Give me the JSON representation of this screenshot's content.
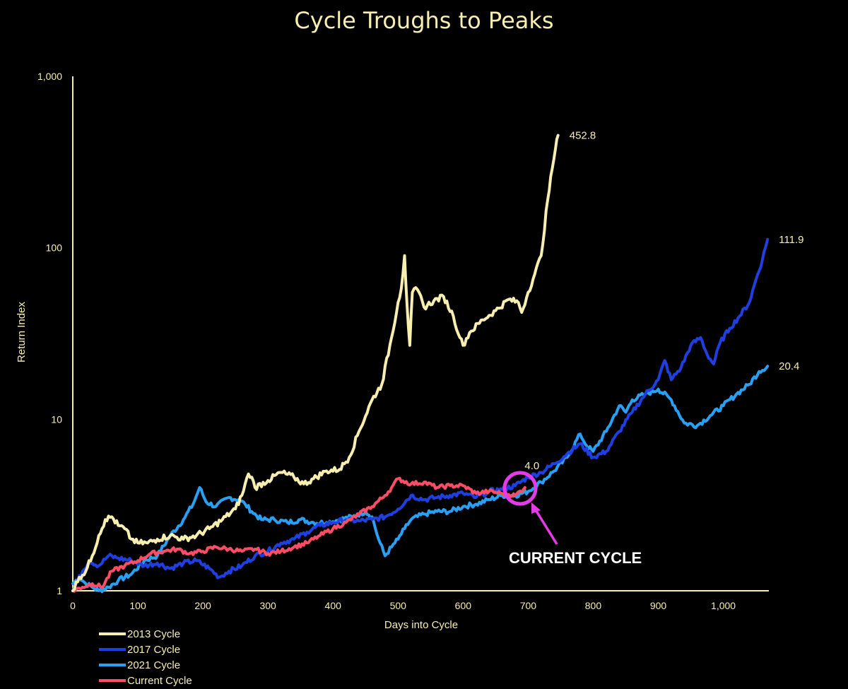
{
  "chart_data": {
    "type": "line",
    "title": "Cycle Troughs to Peaks",
    "xlabel": "Days into Cycle",
    "ylabel": "Return Index",
    "xlim": [
      0,
      1070
    ],
    "ylim": [
      1,
      1000
    ],
    "yscale": "log",
    "xticks": [
      0,
      100,
      200,
      300,
      400,
      500,
      600,
      700,
      800,
      900,
      1000
    ],
    "xtick_labels": [
      "0",
      "100",
      "200",
      "300",
      "400",
      "500",
      "600",
      "700",
      "800",
      "900",
      "1,000"
    ],
    "yticks": [
      1,
      10,
      100,
      1000
    ],
    "ytick_labels": [
      "1",
      "10",
      "100",
      "1,000"
    ],
    "grid": false,
    "legend_position": "bottom-left",
    "series": [
      {
        "name": "2013 Cycle",
        "color": "#f7eeb0",
        "end_label": "452.8",
        "points": [
          [
            0,
            1.0
          ],
          [
            10,
            1.2
          ],
          [
            20,
            1.3
          ],
          [
            30,
            1.6
          ],
          [
            40,
            2.1
          ],
          [
            50,
            2.6
          ],
          [
            60,
            2.7
          ],
          [
            70,
            2.4
          ],
          [
            80,
            2.3
          ],
          [
            90,
            2.0
          ],
          [
            100,
            1.9
          ],
          [
            115,
            1.9
          ],
          [
            130,
            2.0
          ],
          [
            150,
            2.1
          ],
          [
            170,
            2.0
          ],
          [
            190,
            2.1
          ],
          [
            210,
            2.3
          ],
          [
            230,
            2.6
          ],
          [
            250,
            3.0
          ],
          [
            260,
            3.6
          ],
          [
            270,
            4.8
          ],
          [
            275,
            4.6
          ],
          [
            280,
            4.0
          ],
          [
            300,
            4.4
          ],
          [
            320,
            4.9
          ],
          [
            340,
            4.6
          ],
          [
            355,
            4.2
          ],
          [
            370,
            4.5
          ],
          [
            390,
            5.0
          ],
          [
            410,
            5.1
          ],
          [
            425,
            6.0
          ],
          [
            440,
            8.5
          ],
          [
            460,
            13
          ],
          [
            475,
            16
          ],
          [
            490,
            30
          ],
          [
            500,
            48
          ],
          [
            505,
            58
          ],
          [
            510,
            90
          ],
          [
            514,
            45
          ],
          [
            518,
            27
          ],
          [
            522,
            55
          ],
          [
            530,
            57
          ],
          [
            540,
            45
          ],
          [
            555,
            49
          ],
          [
            570,
            52
          ],
          [
            585,
            40
          ],
          [
            595,
            30
          ],
          [
            600,
            27
          ],
          [
            610,
            32
          ],
          [
            630,
            38
          ],
          [
            650,
            43
          ],
          [
            670,
            50
          ],
          [
            685,
            48
          ],
          [
            690,
            42
          ],
          [
            700,
            55
          ],
          [
            710,
            70
          ],
          [
            720,
            90
          ],
          [
            730,
            190
          ],
          [
            737,
            290
          ],
          [
            742,
            380
          ],
          [
            746,
            452.8
          ]
        ]
      },
      {
        "name": "2017 Cycle",
        "color": "#1f3fe0",
        "end_label": "111.9",
        "points": [
          [
            0,
            1.0
          ],
          [
            15,
            1.3
          ],
          [
            25,
            1.5
          ],
          [
            40,
            1.4
          ],
          [
            55,
            1.6
          ],
          [
            70,
            1.55
          ],
          [
            90,
            1.5
          ],
          [
            110,
            1.4
          ],
          [
            130,
            1.45
          ],
          [
            150,
            1.35
          ],
          [
            170,
            1.45
          ],
          [
            190,
            1.5
          ],
          [
            210,
            1.35
          ],
          [
            225,
            1.2
          ],
          [
            240,
            1.3
          ],
          [
            260,
            1.4
          ],
          [
            280,
            1.6
          ],
          [
            300,
            1.7
          ],
          [
            320,
            1.9
          ],
          [
            340,
            2.0
          ],
          [
            360,
            2.2
          ],
          [
            380,
            2.4
          ],
          [
            400,
            2.5
          ],
          [
            420,
            2.6
          ],
          [
            440,
            2.55
          ],
          [
            460,
            2.6
          ],
          [
            480,
            2.7
          ],
          [
            500,
            3.0
          ],
          [
            520,
            3.6
          ],
          [
            540,
            3.4
          ],
          [
            560,
            3.5
          ],
          [
            580,
            3.6
          ],
          [
            600,
            3.7
          ],
          [
            620,
            3.5
          ],
          [
            640,
            3.8
          ],
          [
            660,
            3.9
          ],
          [
            680,
            4.1
          ],
          [
            700,
            4.6
          ],
          [
            720,
            4.9
          ],
          [
            740,
            5.5
          ],
          [
            760,
            6.3
          ],
          [
            780,
            7.2
          ],
          [
            800,
            6.0
          ],
          [
            820,
            6.5
          ],
          [
            840,
            8.5
          ],
          [
            860,
            11
          ],
          [
            880,
            14
          ],
          [
            900,
            17
          ],
          [
            910,
            22
          ],
          [
            920,
            17
          ],
          [
            935,
            20
          ],
          [
            950,
            27
          ],
          [
            965,
            30
          ],
          [
            975,
            24
          ],
          [
            985,
            21
          ],
          [
            995,
            28
          ],
          [
            1010,
            34
          ],
          [
            1025,
            40
          ],
          [
            1040,
            48
          ],
          [
            1050,
            65
          ],
          [
            1060,
            85
          ],
          [
            1068,
            111.9
          ]
        ]
      },
      {
        "name": "2021 Cycle",
        "color": "#2aa0f5",
        "end_label": "20.4",
        "points": [
          [
            0,
            1.1
          ],
          [
            10,
            1.2
          ],
          [
            20,
            1.1
          ],
          [
            30,
            1.05
          ],
          [
            40,
            1.0
          ],
          [
            55,
            1.05
          ],
          [
            70,
            1.15
          ],
          [
            90,
            1.25
          ],
          [
            110,
            1.5
          ],
          [
            130,
            1.6
          ],
          [
            150,
            2.1
          ],
          [
            170,
            2.6
          ],
          [
            185,
            3.2
          ],
          [
            195,
            4.0
          ],
          [
            205,
            3.3
          ],
          [
            220,
            3.1
          ],
          [
            240,
            3.5
          ],
          [
            255,
            3.4
          ],
          [
            265,
            3.2
          ],
          [
            275,
            2.9
          ],
          [
            290,
            2.6
          ],
          [
            310,
            2.6
          ],
          [
            330,
            2.5
          ],
          [
            350,
            2.6
          ],
          [
            370,
            2.5
          ],
          [
            390,
            2.5
          ],
          [
            410,
            2.6
          ],
          [
            430,
            2.7
          ],
          [
            450,
            2.9
          ],
          [
            460,
            2.7
          ],
          [
            470,
            2.0
          ],
          [
            480,
            1.6
          ],
          [
            490,
            1.8
          ],
          [
            500,
            2.0
          ],
          [
            510,
            2.3
          ],
          [
            520,
            2.6
          ],
          [
            540,
            2.8
          ],
          [
            560,
            2.9
          ],
          [
            580,
            2.9
          ],
          [
            600,
            3.1
          ],
          [
            620,
            3.2
          ],
          [
            640,
            3.4
          ],
          [
            660,
            3.6
          ],
          [
            680,
            3.6
          ],
          [
            700,
            3.8
          ],
          [
            720,
            4.3
          ],
          [
            740,
            5.0
          ],
          [
            760,
            6.0
          ],
          [
            780,
            8.2
          ],
          [
            790,
            7.0
          ],
          [
            800,
            6.5
          ],
          [
            820,
            8.5
          ],
          [
            840,
            12
          ],
          [
            850,
            11
          ],
          [
            860,
            13
          ],
          [
            880,
            14
          ],
          [
            900,
            15
          ],
          [
            920,
            13
          ],
          [
            940,
            9.5
          ],
          [
            960,
            9.2
          ],
          [
            980,
            10.5
          ],
          [
            1000,
            12
          ],
          [
            1020,
            14
          ],
          [
            1040,
            16
          ],
          [
            1055,
            19
          ],
          [
            1068,
            20.4
          ]
        ]
      },
      {
        "name": "Current Cycle",
        "color": "#ff4d67",
        "end_label": "4.0",
        "points": [
          [
            0,
            1.0
          ],
          [
            15,
            1.05
          ],
          [
            30,
            1.1
          ],
          [
            45,
            1.05
          ],
          [
            60,
            1.3
          ],
          [
            80,
            1.4
          ],
          [
            100,
            1.5
          ],
          [
            120,
            1.65
          ],
          [
            140,
            1.7
          ],
          [
            160,
            1.75
          ],
          [
            180,
            1.65
          ],
          [
            200,
            1.7
          ],
          [
            220,
            1.8
          ],
          [
            240,
            1.75
          ],
          [
            260,
            1.7
          ],
          [
            280,
            1.75
          ],
          [
            300,
            1.65
          ],
          [
            320,
            1.7
          ],
          [
            340,
            1.8
          ],
          [
            360,
            1.9
          ],
          [
            380,
            2.1
          ],
          [
            400,
            2.3
          ],
          [
            420,
            2.5
          ],
          [
            440,
            2.8
          ],
          [
            460,
            3.1
          ],
          [
            480,
            3.6
          ],
          [
            490,
            4.0
          ],
          [
            500,
            4.5
          ],
          [
            520,
            4.2
          ],
          [
            540,
            4.3
          ],
          [
            560,
            4.0
          ],
          [
            580,
            4.1
          ],
          [
            600,
            4.1
          ],
          [
            620,
            3.7
          ],
          [
            640,
            3.8
          ],
          [
            660,
            3.7
          ],
          [
            680,
            3.6
          ],
          [
            695,
            4.0
          ]
        ]
      }
    ],
    "annotations": [
      {
        "text": "CURRENT CYCLE",
        "x": 695,
        "y": 4.0,
        "color": "#e33be8"
      }
    ]
  }
}
